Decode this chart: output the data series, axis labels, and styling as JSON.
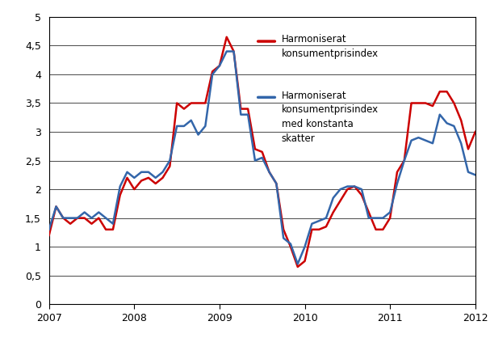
{
  "red_label_line1": "Harmoniserat",
  "red_label_line2": "konsumentprisindex",
  "blue_label_line1": "Harmoniserat",
  "blue_label_line2": "konsumentprisindex",
  "blue_label_line3": "med konstanta",
  "blue_label_line4": "skatter",
  "red_color": "#cc0000",
  "blue_color": "#3366aa",
  "ylim": [
    0,
    5
  ],
  "yticks": [
    0,
    0.5,
    1,
    1.5,
    2,
    2.5,
    3,
    3.5,
    4,
    4.5,
    5
  ],
  "ytick_labels": [
    "0",
    "0,5",
    "1",
    "1,5",
    "2",
    "2,5",
    "3",
    "3,5",
    "4",
    "4,5",
    "5"
  ],
  "xtick_years": [
    2007,
    2008,
    2009,
    2010,
    2011,
    2012
  ],
  "red_values": [
    1.2,
    1.7,
    1.5,
    1.4,
    1.5,
    1.5,
    1.4,
    1.5,
    1.3,
    1.3,
    1.9,
    2.2,
    2.0,
    2.15,
    2.2,
    2.1,
    2.2,
    2.4,
    3.5,
    3.4,
    3.5,
    3.5,
    3.5,
    4.05,
    4.15,
    4.65,
    4.4,
    3.4,
    3.4,
    2.7,
    2.65,
    2.3,
    2.1,
    1.3,
    1.0,
    0.65,
    0.75,
    1.3,
    1.3,
    1.35,
    1.6,
    1.8,
    2.0,
    2.05,
    1.9,
    1.6,
    1.3,
    1.3,
    1.5,
    2.3,
    2.5,
    3.5,
    3.5,
    3.5,
    3.45,
    3.7,
    3.7,
    3.5,
    3.2,
    2.7,
    3.0
  ],
  "blue_values": [
    1.3,
    1.7,
    1.5,
    1.5,
    1.5,
    1.6,
    1.5,
    1.6,
    1.5,
    1.4,
    2.05,
    2.3,
    2.2,
    2.3,
    2.3,
    2.2,
    2.3,
    2.5,
    3.1,
    3.1,
    3.2,
    2.95,
    3.1,
    4.0,
    4.15,
    4.4,
    4.4,
    3.3,
    3.3,
    2.5,
    2.55,
    2.3,
    2.1,
    1.15,
    1.05,
    0.7,
    1.0,
    1.4,
    1.45,
    1.5,
    1.85,
    2.0,
    2.05,
    2.05,
    2.0,
    1.5,
    1.5,
    1.5,
    1.6,
    2.1,
    2.5,
    2.85,
    2.9,
    2.85,
    2.8,
    3.3,
    3.15,
    3.1,
    2.8,
    2.3,
    2.25
  ],
  "background_color": "#ffffff",
  "grid_color": "#000000",
  "line_width": 1.8,
  "font_size": 9
}
